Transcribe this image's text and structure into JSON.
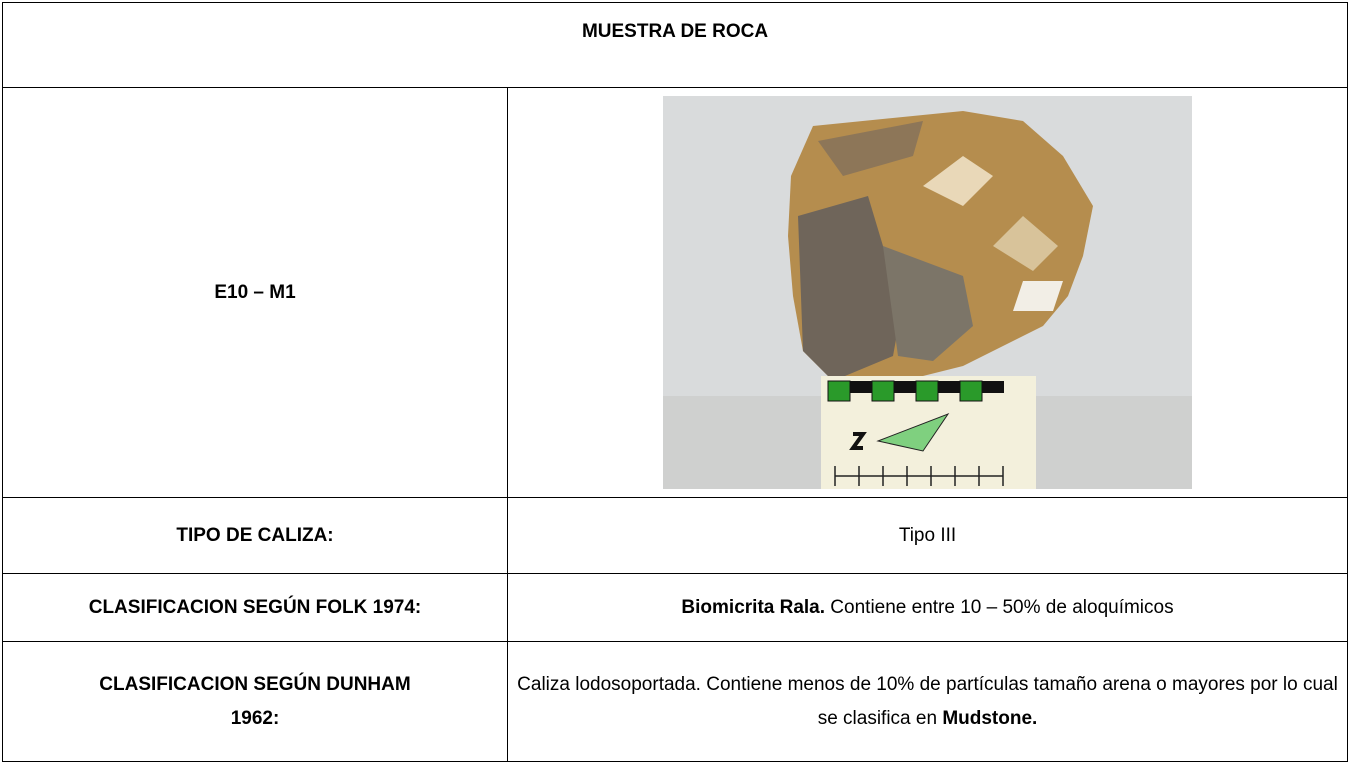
{
  "header": {
    "title": "MUESTRA DE ROCA"
  },
  "sample": {
    "id": "E10 – M1"
  },
  "rows": [
    {
      "label": "TIPO DE CALIZA:",
      "value": [
        {
          "text": "Tipo III",
          "bold": false
        }
      ]
    },
    {
      "label": "CLASIFICACION SEGÚN FOLK 1974:",
      "value": [
        {
          "text": "Biomicrita Rala.",
          "bold": true
        },
        {
          "text": " Contiene entre 10 – 50% de aloquímicos",
          "bold": false
        }
      ]
    },
    {
      "label": "CLASIFICACION SEGÚN DUNHAM 1962:",
      "value": [
        {
          "text": "Caliza lodosoportada. Contiene menos de 10% de partículas tamaño arena o mayores por lo cual se clasifica en ",
          "bold": false
        },
        {
          "text": "Mudstone.",
          "bold": true
        }
      ]
    }
  ]
}
